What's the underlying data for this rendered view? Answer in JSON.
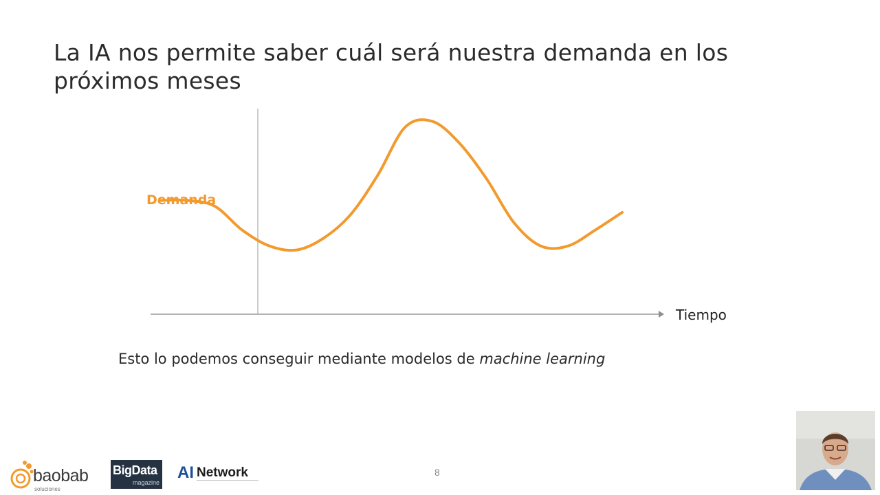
{
  "slide": {
    "title": "La IA nos permite saber cuál será nuestra demanda en los próximos meses",
    "subtitle_prefix": "Esto lo podemos conseguir mediante modelos de ",
    "subtitle_emphasis": "machine learning",
    "page_number": "8"
  },
  "chart_data": {
    "type": "line",
    "series": [
      {
        "name": "Demanda",
        "color": "#f29a2e",
        "values": [
          0.55,
          0.55,
          0.52,
          0.4,
          0.32,
          0.3,
          0.36,
          0.48,
          0.68,
          0.92,
          0.95,
          0.84,
          0.66,
          0.44,
          0.32,
          0.32,
          0.4,
          0.49
        ]
      }
    ],
    "x_axis_label": "Tiempo",
    "series_label": "Demanda",
    "ylim": [
      0,
      1
    ],
    "grid": false,
    "axis_color": "#9a9a9a"
  },
  "logos": {
    "baobab": {
      "name": "baobab",
      "sub": "soluciones",
      "color": "#f29a2e"
    },
    "bigdata": {
      "name": "BigData",
      "sub": "magazine"
    },
    "ainetwork": {
      "mark": "AI",
      "name": "Network"
    }
  },
  "webcam": {
    "icon": "presenter-video-icon"
  }
}
